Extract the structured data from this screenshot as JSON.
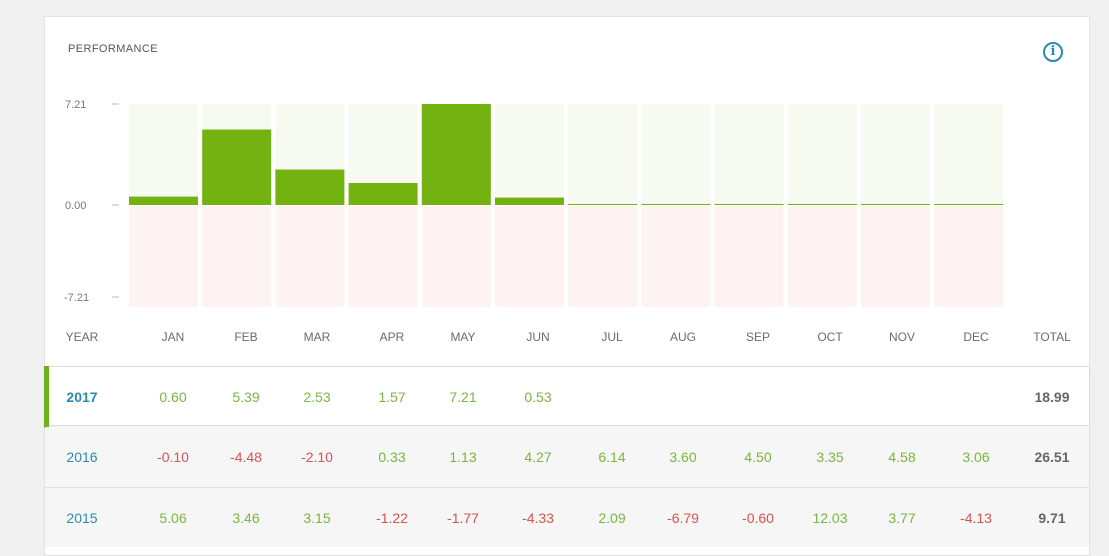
{
  "card": {
    "title": "PERFORMANCE",
    "info_icon": "info-icon"
  },
  "chart_data": {
    "type": "bar",
    "categories": [
      "JAN",
      "FEB",
      "MAR",
      "APR",
      "MAY",
      "JUN",
      "JUL",
      "AUG",
      "SEP",
      "OCT",
      "NOV",
      "DEC"
    ],
    "values": [
      0.6,
      5.39,
      2.53,
      1.57,
      7.21,
      0.53,
      0,
      0,
      0,
      0,
      0,
      0
    ],
    "ylim": [
      -7.21,
      7.21
    ],
    "yticks": [
      "7.21",
      "0.00",
      "-7.21"
    ],
    "title": "PERFORMANCE",
    "colors": {
      "bar": "#74b211",
      "pos_bg": "#f6faf0",
      "neg_bg": "#fdf3f2"
    }
  },
  "table": {
    "headers": [
      "YEAR",
      "JAN",
      "FEB",
      "MAR",
      "APR",
      "MAY",
      "JUN",
      "JUL",
      "AUG",
      "SEP",
      "OCT",
      "NOV",
      "DEC",
      "TOTAL"
    ],
    "rows": [
      {
        "year": "2017",
        "values": [
          "0.60",
          "5.39",
          "2.53",
          "1.57",
          "7.21",
          "0.53",
          "",
          "",
          "",
          "",
          "",
          ""
        ],
        "total": "18.99"
      },
      {
        "year": "2016",
        "values": [
          "-0.10",
          "-4.48",
          "-2.10",
          "0.33",
          "1.13",
          "4.27",
          "6.14",
          "3.60",
          "4.50",
          "3.35",
          "4.58",
          "3.06"
        ],
        "total": "26.51"
      },
      {
        "year": "2015",
        "values": [
          "5.06",
          "3.46",
          "3.15",
          "-1.22",
          "-1.77",
          "-4.33",
          "2.09",
          "-6.79",
          "-0.60",
          "12.03",
          "3.77",
          "-4.13"
        ],
        "total": "9.71"
      }
    ]
  },
  "colors": {
    "positive": "#7ab640",
    "negative": "#d9534f",
    "year": "#2a8ab7",
    "accent": "#6fb01d"
  }
}
